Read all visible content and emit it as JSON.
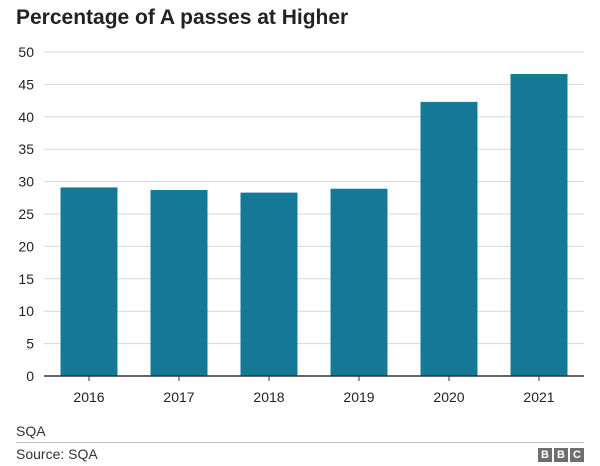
{
  "chart_data": {
    "type": "bar",
    "title": "Percentage of A passes at Higher",
    "categories": [
      "2016",
      "2017",
      "2018",
      "2019",
      "2020",
      "2021"
    ],
    "values": [
      29.1,
      28.7,
      28.3,
      28.9,
      42.3,
      46.6
    ],
    "ylim": [
      0,
      50
    ],
    "yticks": [
      0,
      5,
      10,
      15,
      20,
      25,
      30,
      35,
      40,
      45,
      50
    ],
    "grid": true,
    "bar_color": "#157896",
    "grid_color": "#d7d7d7",
    "axis_color": "#333333"
  },
  "footer": {
    "note": "SQA",
    "source": "Source: SQA",
    "logo": [
      "B",
      "B",
      "C"
    ]
  }
}
